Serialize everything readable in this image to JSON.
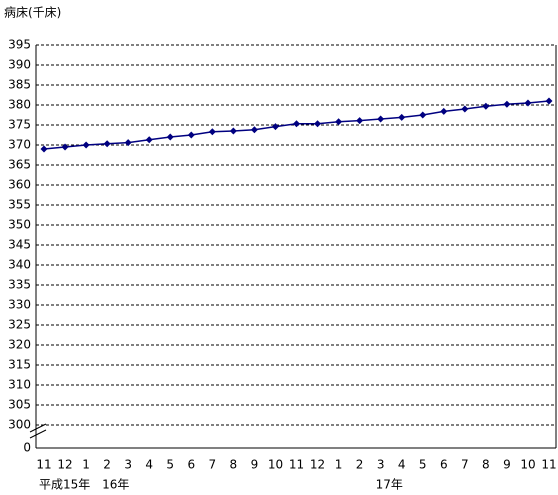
{
  "chart_data": {
    "type": "line",
    "title": "病床(千床)",
    "categories": [
      "11",
      "12",
      "1",
      "2",
      "3",
      "4",
      "5",
      "6",
      "7",
      "8",
      "9",
      "10",
      "11",
      "12",
      "1",
      "2",
      "3",
      "4",
      "5",
      "6",
      "7",
      "8",
      "9",
      "10",
      "11"
    ],
    "year_labels": [
      "平成15年",
      null,
      null,
      "16年",
      null,
      null,
      null,
      null,
      null,
      null,
      null,
      null,
      null,
      null,
      null,
      null,
      "17年",
      null,
      null,
      null,
      null,
      null,
      null,
      null,
      null
    ],
    "series": [
      {
        "name": "病床",
        "color": "#000080",
        "values": [
          369.0,
          369.5,
          370.0,
          370.3,
          370.6,
          371.3,
          372.0,
          372.5,
          373.3,
          373.5,
          373.8,
          374.6,
          375.3,
          375.3,
          375.8,
          376.1,
          376.5,
          376.9,
          377.5,
          378.4,
          379.0,
          379.7,
          380.2,
          380.5,
          381.0
        ]
      }
    ],
    "ylim": [
      300,
      395
    ],
    "yticks": [
      0,
      300,
      305,
      310,
      315,
      320,
      325,
      330,
      335,
      340,
      345,
      350,
      355,
      360,
      365,
      370,
      375,
      380,
      385,
      390,
      395
    ],
    "axis_break": true,
    "grid": true
  }
}
